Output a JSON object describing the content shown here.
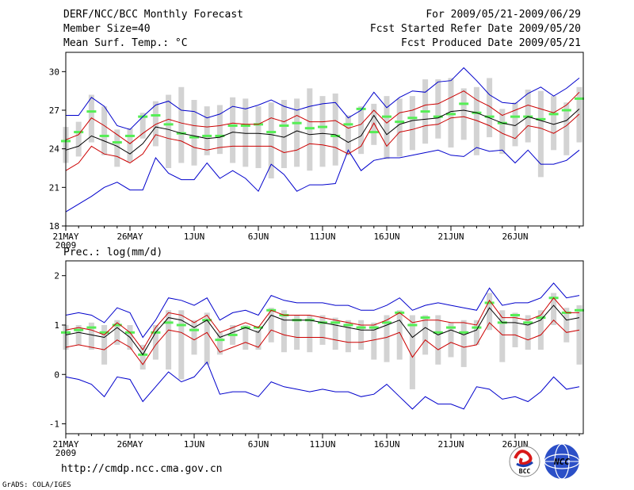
{
  "header": {
    "title": "DERF/NCC/BCC Monthly Forecast",
    "member_size": "Member Size=40",
    "variable": "Mean Surf. Temp.: °C",
    "period": "For 2009/05/21-2009/06/29",
    "start_date": "Fcst Started Refer Date 2009/05/20",
    "produced_date": "Fcst Produced Date 2009/05/21"
  },
  "footer": {
    "url": "http://cmdp.ncc.cma.gov.cn",
    "grads": "GrADS: COLA/IGES",
    "logo_bcc": "BCC",
    "logo_ncc": "NCC"
  },
  "colors": {
    "ensemble_mean": "#000000",
    "spread_inner": "#cc0000",
    "spread_outer": "#0000cc",
    "member_bar": "#d3d3d3",
    "median_marker": "#55ee55"
  },
  "chart_data": [
    {
      "type": "line",
      "title": "Mean Surf. Temp.: °C",
      "x_tick_labels": [
        "21MAY",
        "26MAY",
        "1JUN",
        "6JUN",
        "11JUN",
        "16JUN",
        "21JUN",
        "26JUN"
      ],
      "x_year_label": "2009",
      "ylim": [
        18,
        31.5
      ],
      "yticks": [
        18,
        21,
        24,
        27,
        30
      ],
      "series": [
        {
          "name": "max",
          "values": [
            26.6,
            26.6,
            28,
            27.3,
            25.8,
            25.5,
            26.5,
            27.4,
            27.7,
            27,
            26.9,
            26.4,
            26.7,
            27.3,
            27.1,
            27.4,
            27.8,
            27.3,
            27,
            27.3,
            27.5,
            27.6,
            26.4,
            27,
            28.4,
            27.2,
            28,
            28.5,
            28.4,
            29.2,
            29.3,
            30.3,
            29.3,
            28.2,
            27.6,
            27.5,
            28.3,
            28.8,
            28.1,
            28.7,
            29.5
          ]
        },
        {
          "name": "p_high",
          "values": [
            24.7,
            25.1,
            26.4,
            25.8,
            25.1,
            24.4,
            25.2,
            25.9,
            26.3,
            26,
            25.8,
            25.7,
            25.8,
            26,
            25.9,
            25.9,
            26.4,
            26.1,
            26.6,
            26.1,
            26.1,
            26.2,
            25.6,
            25.9,
            27,
            26,
            26.8,
            27,
            27.4,
            27.5,
            28,
            28.5,
            27.8,
            27.3,
            26.6,
            27,
            27.4,
            27.1,
            26.8,
            27.4,
            28.4
          ]
        },
        {
          "name": "mean",
          "values": [
            23.9,
            24.2,
            25,
            24.6,
            24.2,
            23.6,
            24.4,
            25.7,
            25.5,
            25.2,
            25,
            24.8,
            24.9,
            25.3,
            25.2,
            25.2,
            25.1,
            24.9,
            25.4,
            25.1,
            25.2,
            25.1,
            24.5,
            25,
            26.6,
            25.1,
            25.9,
            26.2,
            26.3,
            26.4,
            26.9,
            27,
            26.8,
            26.4,
            26,
            25.8,
            26.5,
            26.2,
            25.9,
            26.2,
            27.1
          ]
        },
        {
          "name": "p_low",
          "values": [
            22.3,
            22.9,
            24.2,
            23.6,
            23.4,
            22.9,
            23.6,
            25.1,
            24.8,
            24.6,
            24.1,
            23.9,
            24.1,
            24.2,
            24.2,
            24.2,
            24.2,
            23.7,
            23.9,
            24.4,
            24.3,
            24.1,
            23.6,
            24.2,
            26,
            24.2,
            25.3,
            25.5,
            25.8,
            25.9,
            26.4,
            26.5,
            26.2,
            25.8,
            25.2,
            24.8,
            25.8,
            25.6,
            25.2,
            25.8,
            26.7
          ]
        },
        {
          "name": "min",
          "values": [
            19.1,
            19.7,
            20.3,
            21,
            21.4,
            20.8,
            20.8,
            23.3,
            22.1,
            21.6,
            21.6,
            22.9,
            21.7,
            22.3,
            21.7,
            20.7,
            22.8,
            22,
            20.7,
            21.2,
            21.2,
            21.3,
            23.9,
            22.3,
            23.1,
            23.3,
            23.3,
            23.5,
            23.7,
            23.9,
            23.5,
            23.4,
            24.1,
            23.8,
            23.9,
            22.9,
            23.9,
            22.8,
            22.8,
            23.1,
            23.9
          ]
        },
        {
          "name": "bar_top",
          "values": [
            25.7,
            26.1,
            28.2,
            27.3,
            25.5,
            25.6,
            26.8,
            27.7,
            28.2,
            28.8,
            27.8,
            27.3,
            27.4,
            28,
            27.9,
            27.3,
            27.6,
            27.8,
            27.9,
            28.7,
            28.1,
            28.3,
            26.6,
            27.3,
            27.5,
            28.1,
            27.9,
            28.1,
            29.4,
            29.4,
            29.5,
            28.7,
            28.8,
            29.5,
            27.1,
            27.6,
            28.6,
            28.5,
            28.1,
            27.6,
            28.8
          ]
        },
        {
          "name": "bar_bottom",
          "values": [
            22.9,
            23.4,
            24.5,
            23.5,
            22.6,
            23,
            24.8,
            24.2,
            22.5,
            22.9,
            22.7,
            23.5,
            23.6,
            22.9,
            22.6,
            22.5,
            21.7,
            22.5,
            22.6,
            22.3,
            22.6,
            22.7,
            23.5,
            23.6,
            24.3,
            23.2,
            23.4,
            23.9,
            24.4,
            24.8,
            24.1,
            24.7,
            23.5,
            24.9,
            23.6,
            24.2,
            24.5,
            21.8,
            23.9,
            23.5,
            24.5
          ]
        },
        {
          "name": "median",
          "values": [
            24.6,
            25.3,
            26.9,
            25,
            24.5,
            25,
            26.5,
            26.6,
            25.9,
            25.2,
            24.9,
            25,
            25,
            25.8,
            25.8,
            25.9,
            25.3,
            25.8,
            26,
            25.6,
            25.7,
            25,
            25.9,
            27.1,
            25.3,
            26.5,
            26.1,
            26.4,
            26.9,
            26.5,
            26.7,
            27.5,
            26.8,
            26.5,
            26,
            26.5,
            26.5,
            26.3,
            26.7,
            27,
            27.9
          ]
        }
      ]
    },
    {
      "type": "line",
      "title": "Prec.: log(mm/d)",
      "x_tick_labels": [
        "21MAY",
        "26MAY",
        "1JUN",
        "6JUN",
        "11JUN",
        "16JUN",
        "21JUN",
        "26JUN"
      ],
      "x_year_label": "2009",
      "ylim": [
        -1.2,
        2.3
      ],
      "yticks": [
        -1,
        0,
        1,
        2
      ],
      "series": [
        {
          "name": "max",
          "values": [
            1.2,
            1.25,
            1.2,
            1.05,
            1.35,
            1.25,
            0.75,
            1.1,
            1.55,
            1.5,
            1.4,
            1.55,
            1.1,
            1.25,
            1.3,
            1.2,
            1.6,
            1.5,
            1.45,
            1.45,
            1.45,
            1.4,
            1.4,
            1.3,
            1.3,
            1.4,
            1.55,
            1.3,
            1.4,
            1.45,
            1.4,
            1.35,
            1.3,
            1.75,
            1.4,
            1.45,
            1.45,
            1.55,
            1.85,
            1.55,
            1.6
          ]
        },
        {
          "name": "p_high",
          "values": [
            0.9,
            0.95,
            0.9,
            0.8,
            1.05,
            0.85,
            0.5,
            0.95,
            1.25,
            1.2,
            1.05,
            1.2,
            0.85,
            0.95,
            1.05,
            0.95,
            1.3,
            1.2,
            1.2,
            1.2,
            1.15,
            1.1,
            1.05,
            1.0,
            1.0,
            1.1,
            1.25,
            1.05,
            1.1,
            1.1,
            1.05,
            1.05,
            1.0,
            1.5,
            1.15,
            1.15,
            1.1,
            1.2,
            1.55,
            1.25,
            1.25
          ]
        },
        {
          "name": "mean",
          "values": [
            0.8,
            0.85,
            0.8,
            0.75,
            0.95,
            0.75,
            0.4,
            0.85,
            1.15,
            1.1,
            0.95,
            1.1,
            0.75,
            0.85,
            0.95,
            0.85,
            1.2,
            1.1,
            1.1,
            1.1,
            1.05,
            1.0,
            0.95,
            0.9,
            0.9,
            1.0,
            1.1,
            0.75,
            0.95,
            0.8,
            0.9,
            0.8,
            0.9,
            1.35,
            1.05,
            1.05,
            1.0,
            1.1,
            1.4,
            1.1,
            1.15
          ]
        },
        {
          "name": "p_low",
          "values": [
            0.55,
            0.6,
            0.55,
            0.5,
            0.7,
            0.55,
            0.2,
            0.6,
            0.9,
            0.85,
            0.7,
            0.85,
            0.45,
            0.55,
            0.65,
            0.55,
            0.9,
            0.8,
            0.75,
            0.75,
            0.75,
            0.7,
            0.65,
            0.65,
            0.7,
            0.75,
            0.85,
            0.35,
            0.7,
            0.5,
            0.65,
            0.55,
            0.6,
            1.05,
            0.8,
            0.8,
            0.7,
            0.8,
            1.1,
            0.85,
            0.9
          ]
        },
        {
          "name": "min",
          "values": [
            -0.05,
            -0.1,
            -0.2,
            -0.45,
            -0.05,
            -0.1,
            -0.55,
            -0.25,
            0.05,
            -0.15,
            -0.05,
            0.25,
            -0.4,
            -0.35,
            -0.35,
            -0.45,
            -0.15,
            -0.25,
            -0.3,
            -0.35,
            -0.3,
            -0.35,
            -0.35,
            -0.45,
            -0.4,
            -0.2,
            -0.45,
            -0.7,
            -0.45,
            -0.6,
            -0.6,
            -0.7,
            -0.25,
            -0.3,
            -0.5,
            -0.45,
            -0.55,
            -0.35,
            -0.05,
            -0.3,
            -0.25
          ]
        },
        {
          "name": "bar_top",
          "values": [
            1.0,
            1.0,
            1.05,
            1.0,
            1.1,
            1.0,
            0.6,
            1.0,
            1.3,
            1.3,
            1.1,
            1.25,
            0.85,
            1.0,
            1.0,
            0.9,
            1.35,
            1.3,
            1.2,
            1.2,
            1.2,
            1.15,
            1.1,
            1.1,
            1.05,
            1.2,
            1.3,
            1.2,
            1.2,
            1.2,
            1.05,
            1.1,
            1.1,
            1.65,
            1.3,
            1.25,
            1.2,
            1.3,
            1.65,
            1.35,
            1.4
          ]
        },
        {
          "name": "bar_bottom",
          "values": [
            0.5,
            0.6,
            0.5,
            0.2,
            0.6,
            0.5,
            0.1,
            0.3,
            0.1,
            -0.1,
            0.4,
            0.2,
            0.4,
            0.6,
            0.5,
            0.5,
            0.65,
            0.45,
            0.5,
            0.45,
            0.6,
            0.5,
            0.45,
            0.5,
            0.3,
            0.25,
            0.3,
            -0.3,
            0.4,
            0.2,
            0.35,
            0.15,
            0.6,
            0.9,
            0.25,
            0.55,
            0.5,
            0.5,
            1.0,
            0.65,
            0.2
          ]
        },
        {
          "name": "median",
          "values": [
            0.85,
            0.9,
            0.95,
            0.85,
            1.0,
            0.85,
            0.4,
            0.85,
            1.05,
            1.0,
            0.9,
            1.1,
            0.7,
            0.8,
            0.95,
            0.95,
            1.3,
            1.2,
            1.1,
            1.1,
            1.05,
            1.05,
            1.0,
            0.95,
            0.95,
            1.05,
            1.25,
            1.0,
            1.15,
            0.85,
            0.95,
            0.85,
            0.95,
            1.45,
            1.05,
            1.2,
            1.05,
            1.15,
            1.55,
            1.25,
            1.3
          ]
        }
      ]
    }
  ]
}
